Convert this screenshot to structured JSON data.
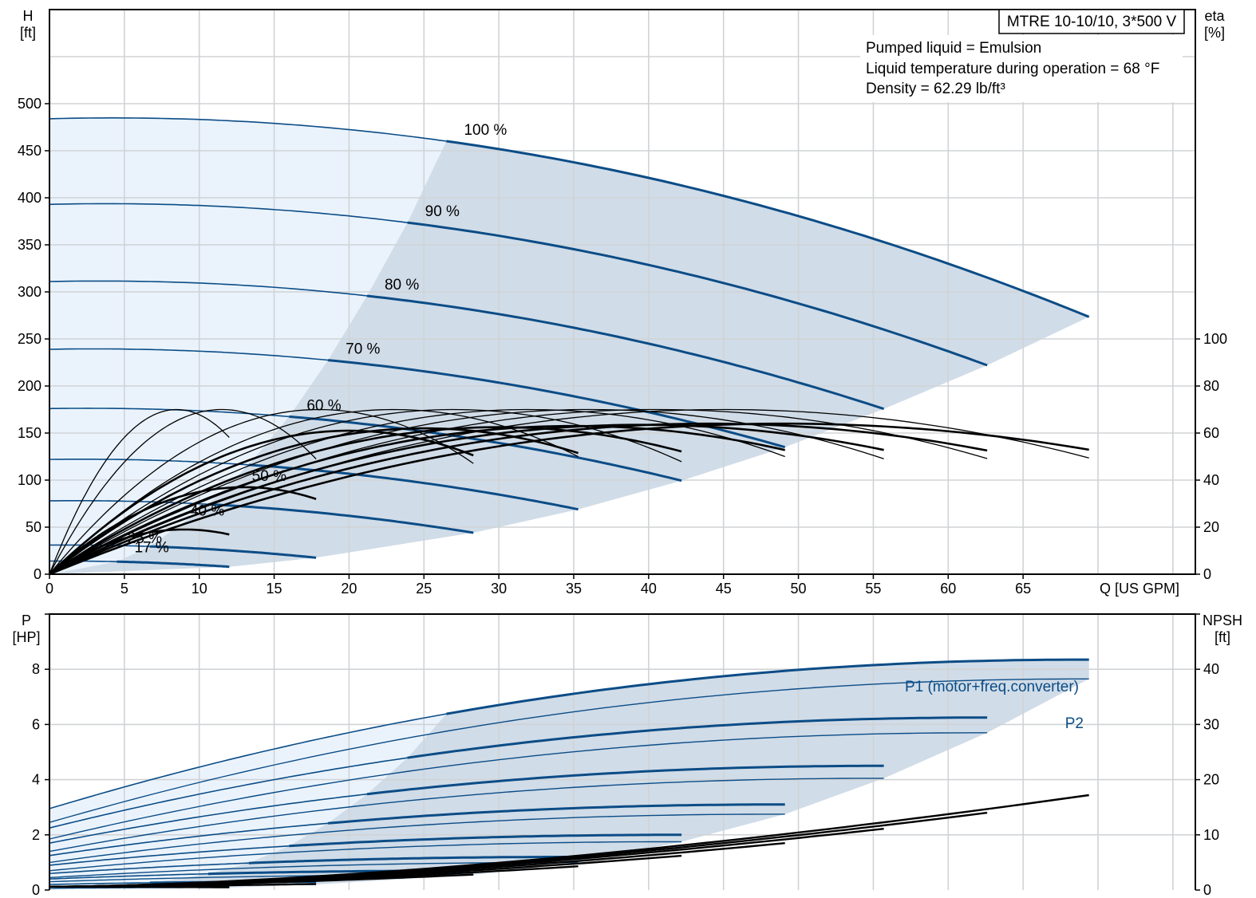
{
  "title_box": "MTRE 10-10/10, 3*500 V",
  "notes": [
    "Pumped liquid = Emulsion",
    "Liquid temperature during operation = 68 °F",
    "Density = 62.29 lb/ft³"
  ],
  "colors": {
    "curve_blue": "#0b4c86",
    "region_dark": "#d0dce8",
    "region_light": "#eaf3fc",
    "efficiency": "#000000",
    "grid": "#d0d3d6"
  },
  "chart_data": [
    {
      "type": "line",
      "name": "head-efficiency",
      "xlabel": "Q [US GPM]",
      "ylabel_line1": "H",
      "ylabel_line2": "[ft]",
      "y2label_line1": "eta",
      "y2label_line2": "[%]",
      "x_ticks": [
        0,
        5,
        10,
        15,
        20,
        25,
        30,
        35,
        40,
        45,
        50,
        55,
        60,
        65
      ],
      "y_ticks": [
        0,
        50,
        100,
        150,
        200,
        250,
        300,
        350,
        400,
        450,
        500
      ],
      "y2_ticks": [
        0,
        20,
        40,
        60,
        80,
        100
      ],
      "xlim": [
        0,
        76.5
      ],
      "ylim": [
        0,
        600
      ],
      "y2lim": [
        0,
        240
      ],
      "grid": true,
      "speed_curves": [
        {
          "label": "100 %",
          "q_max": 69.4,
          "h0": 484,
          "q_bep": 26.5
        },
        {
          "label": "90 %",
          "q_max": 62.6,
          "h0": 393,
          "q_bep": 23.9
        },
        {
          "label": "80 %",
          "q_max": 55.7,
          "h0": 311,
          "q_bep": 21.2
        },
        {
          "label": "70 %",
          "q_max": 49.1,
          "h0": 239,
          "q_bep": 18.6
        },
        {
          "label": "60 %",
          "q_max": 42.2,
          "h0": 176,
          "q_bep": 16.0
        },
        {
          "label": "50 %",
          "q_max": 35.3,
          "h0": 122,
          "q_bep": 13.3
        },
        {
          "label": "40 %",
          "q_max": 28.3,
          "h0": 78,
          "q_bep": 10.6
        },
        {
          "label": "25 %",
          "q_max": 17.8,
          "h0": 31,
          "q_bep": 6.7
        },
        {
          "label": "17 %",
          "q_max": 12.0,
          "h0": 14,
          "q_bep": 4.5
        }
      ],
      "efficiency_curves": [
        {
          "q_max": 69.4,
          "eta_peak": 70,
          "q_peak": 45.0,
          "thick": false
        },
        {
          "q_max": 69.4,
          "eta_peak": 64,
          "q_peak": 49.0,
          "thick": true
        },
        {
          "q_max": 62.6,
          "eta_peak": 70,
          "q_peak": 40.5,
          "thick": false
        },
        {
          "q_max": 62.6,
          "eta_peak": 64,
          "q_peak": 44.0,
          "thick": true
        },
        {
          "q_max": 55.7,
          "eta_peak": 70,
          "q_peak": 36.0,
          "thick": false
        },
        {
          "q_max": 55.7,
          "eta_peak": 63.5,
          "q_peak": 39.5,
          "thick": true
        },
        {
          "q_max": 49.1,
          "eta_peak": 70,
          "q_peak": 32.0,
          "thick": false
        },
        {
          "q_max": 49.1,
          "eta_peak": 63,
          "q_peak": 35.0,
          "thick": true
        },
        {
          "q_max": 42.2,
          "eta_peak": 70,
          "q_peak": 27.0,
          "thick": false
        },
        {
          "q_max": 42.2,
          "eta_peak": 62.5,
          "q_peak": 30.0,
          "thick": true
        },
        {
          "q_max": 35.3,
          "eta_peak": 70,
          "q_peak": 23.0,
          "thick": false
        },
        {
          "q_max": 35.3,
          "eta_peak": 62,
          "q_peak": 25.0,
          "thick": true
        },
        {
          "q_max": 28.3,
          "eta_peak": 70,
          "q_peak": 18.0,
          "thick": false
        },
        {
          "q_max": 28.3,
          "eta_peak": 61,
          "q_peak": 20.0,
          "thick": true
        },
        {
          "q_max": 17.8,
          "eta_peak": 70,
          "q_peak": 11.5,
          "thick": false
        },
        {
          "q_max": 17.8,
          "eta_peak": 37,
          "q_peak": 13.0,
          "thick": true
        },
        {
          "q_max": 12.0,
          "eta_peak": 70,
          "q_peak": 8.5,
          "thick": false
        },
        {
          "q_max": 12.0,
          "eta_peak": 19,
          "q_peak": 9.0,
          "thick": true
        }
      ]
    },
    {
      "type": "line",
      "name": "power-npsh",
      "ylabel_line1": "P",
      "ylabel_line2": "[HP]",
      "y2label_line1": "NPSH",
      "y2label_line2": "[ft]",
      "x_ticks": [
        0,
        5,
        10,
        15,
        20,
        25,
        30,
        35,
        40,
        45,
        50,
        55,
        60,
        65
      ],
      "y_ticks": [
        0,
        2,
        4,
        6,
        8
      ],
      "y2_ticks": [
        0,
        10,
        20,
        30,
        40
      ],
      "xlim": [
        0,
        76.5
      ],
      "ylim": [
        0,
        10
      ],
      "y2lim": [
        0,
        50
      ],
      "grid": true,
      "series_labels": [
        "P1 (motor+freq.converter)",
        "P2"
      ],
      "power_curves": [
        {
          "q_max": 69.4,
          "p1_0": 2.95,
          "p1_max": 8.35,
          "p2_0": 2.45,
          "p2_max": 7.65,
          "q_bep": 26.5
        },
        {
          "q_max": 62.6,
          "p1_0": 2.25,
          "p1_max": 6.25,
          "p2_0": 1.85,
          "p2_max": 5.7,
          "q_bep": 23.9
        },
        {
          "q_max": 55.7,
          "p1_0": 1.7,
          "p1_max": 4.5,
          "p2_0": 1.4,
          "p2_max": 4.05,
          "q_bep": 21.2
        },
        {
          "q_max": 49.1,
          "p1_0": 1.25,
          "p1_max": 3.1,
          "p2_0": 1.0,
          "p2_max": 2.75,
          "q_bep": 18.6
        },
        {
          "q_max": 42.2,
          "p1_0": 0.9,
          "p1_max": 2.0,
          "p2_0": 0.7,
          "p2_max": 1.75,
          "q_bep": 16.0
        },
        {
          "q_max": 35.3,
          "p1_0": 0.6,
          "p1_max": 1.2,
          "p2_0": 0.45,
          "p2_max": 1.0,
          "q_bep": 13.3
        },
        {
          "q_max": 28.3,
          "p1_0": 0.4,
          "p1_max": 0.7,
          "p2_0": 0.3,
          "p2_max": 0.55,
          "q_bep": 10.6
        },
        {
          "q_max": 17.8,
          "p1_0": 0.2,
          "p1_max": 0.3,
          "p2_0": 0.12,
          "p2_max": 0.2,
          "q_bep": 6.7
        },
        {
          "q_max": 12.0,
          "p1_0": 0.12,
          "p1_max": 0.16,
          "p2_0": 0.06,
          "p2_max": 0.09,
          "q_bep": 4.5
        }
      ],
      "npsh_curves": [
        {
          "q_max": 69.4,
          "npsh_max": 17.2
        },
        {
          "q_max": 62.6,
          "npsh_max": 14.0
        },
        {
          "q_max": 55.7,
          "npsh_max": 11.1
        },
        {
          "q_max": 49.1,
          "npsh_max": 8.5
        },
        {
          "q_max": 42.2,
          "npsh_max": 6.2
        },
        {
          "q_max": 35.3,
          "npsh_max": 4.3
        },
        {
          "q_max": 28.3,
          "npsh_max": 2.8
        },
        {
          "q_max": 17.8,
          "npsh_max": 1.1
        },
        {
          "q_max": 12.0,
          "npsh_max": 0.5
        }
      ]
    }
  ]
}
